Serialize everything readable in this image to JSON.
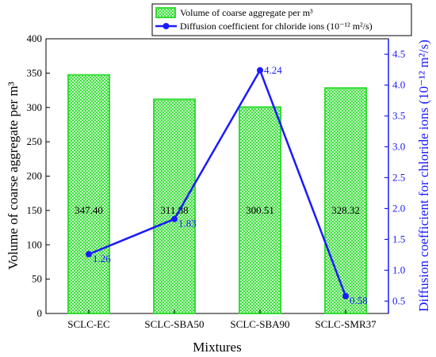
{
  "chart_data": {
    "type": "bar+line",
    "xlabel": "Mixtures",
    "categories": [
      "SCLC-EC",
      "SCLC-SBA50",
      "SCLC-SBA90",
      "SCLC-SMR37"
    ],
    "series": [
      {
        "name": "Volume of coarse aggregate per m³",
        "type": "bar",
        "axis": "left",
        "values": [
          347.4,
          311.88,
          300.51,
          328.32
        ],
        "labels": [
          "347.40",
          "311.88",
          "300.51",
          "328.32"
        ],
        "color": "#33dd33"
      },
      {
        "name": "Diffusion coefficient for chloride ions (10⁻¹² m²/s)",
        "type": "line",
        "axis": "right",
        "values": [
          1.26,
          1.83,
          4.24,
          0.58
        ],
        "labels": [
          "1.26",
          "1.83",
          "4.24",
          "0.58"
        ],
        "color": "#1a1aff"
      }
    ],
    "y_left": {
      "label": "Volume of coarse aggregate per m³",
      "lim": [
        0,
        400
      ],
      "ticks": [
        "0",
        "50",
        "100",
        "150",
        "200",
        "250",
        "300",
        "350",
        "400"
      ],
      "color": "#000000"
    },
    "y_right": {
      "label": "Diffusion coefficient for chloride ions (10⁻¹² m²/s)",
      "lim": [
        0.3,
        4.75
      ],
      "ticks": [
        "0.5",
        "1.0",
        "1.5",
        "2.0",
        "2.5",
        "3.0",
        "3.5",
        "4.0",
        "4.5"
      ],
      "color": "#1a1aff"
    },
    "grid": false,
    "legend_position": "top"
  }
}
